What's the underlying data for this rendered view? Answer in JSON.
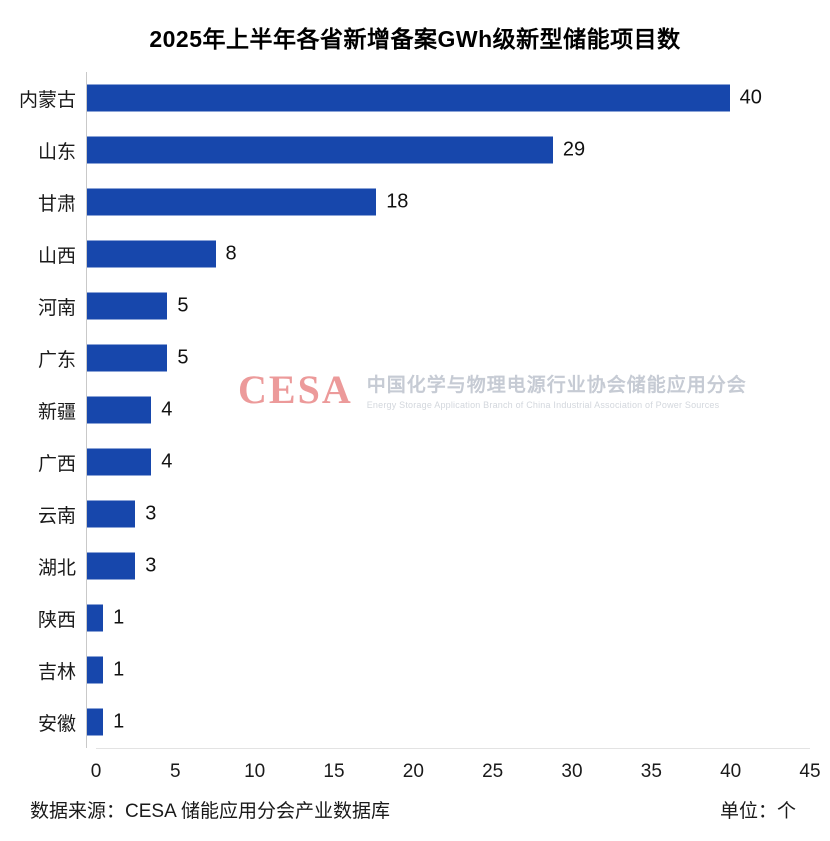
{
  "title": "2025年上半年各省新增备案GWh级新型储能项目数",
  "footer": {
    "source": "数据来源：CESA 储能应用分会产业数据库",
    "unit": "单位：个"
  },
  "watermark": {
    "logo": "CESA",
    "text_cn": "中国化学与物理电源行业协会储能应用分会",
    "text_en": "Energy Storage Application Branch of China Industrial Association of Power Sources"
  },
  "colors": {
    "bar": "#1747ac",
    "watermark_logo": "#ec9a9a",
    "watermark_cn": "#c6cbd4",
    "watermark_en": "#d3d7dd"
  },
  "chart_data": {
    "type": "bar",
    "orientation": "horizontal",
    "title": "2025年上半年各省新增备案GWh级新型储能项目数",
    "categories": [
      "内蒙古",
      "山东",
      "甘肃",
      "山西",
      "河南",
      "广东",
      "新疆",
      "广西",
      "云南",
      "湖北",
      "陕西",
      "吉林",
      "安徽"
    ],
    "values": [
      40,
      29,
      18,
      8,
      5,
      5,
      4,
      4,
      3,
      3,
      1,
      1,
      1
    ],
    "xlabel": "",
    "ylabel": "",
    "xlim": [
      0,
      45
    ],
    "x_ticks": [
      0,
      5,
      10,
      15,
      20,
      25,
      30,
      35,
      40,
      45
    ],
    "grid": false,
    "legend": false,
    "value_labels": true,
    "unit": "个"
  }
}
